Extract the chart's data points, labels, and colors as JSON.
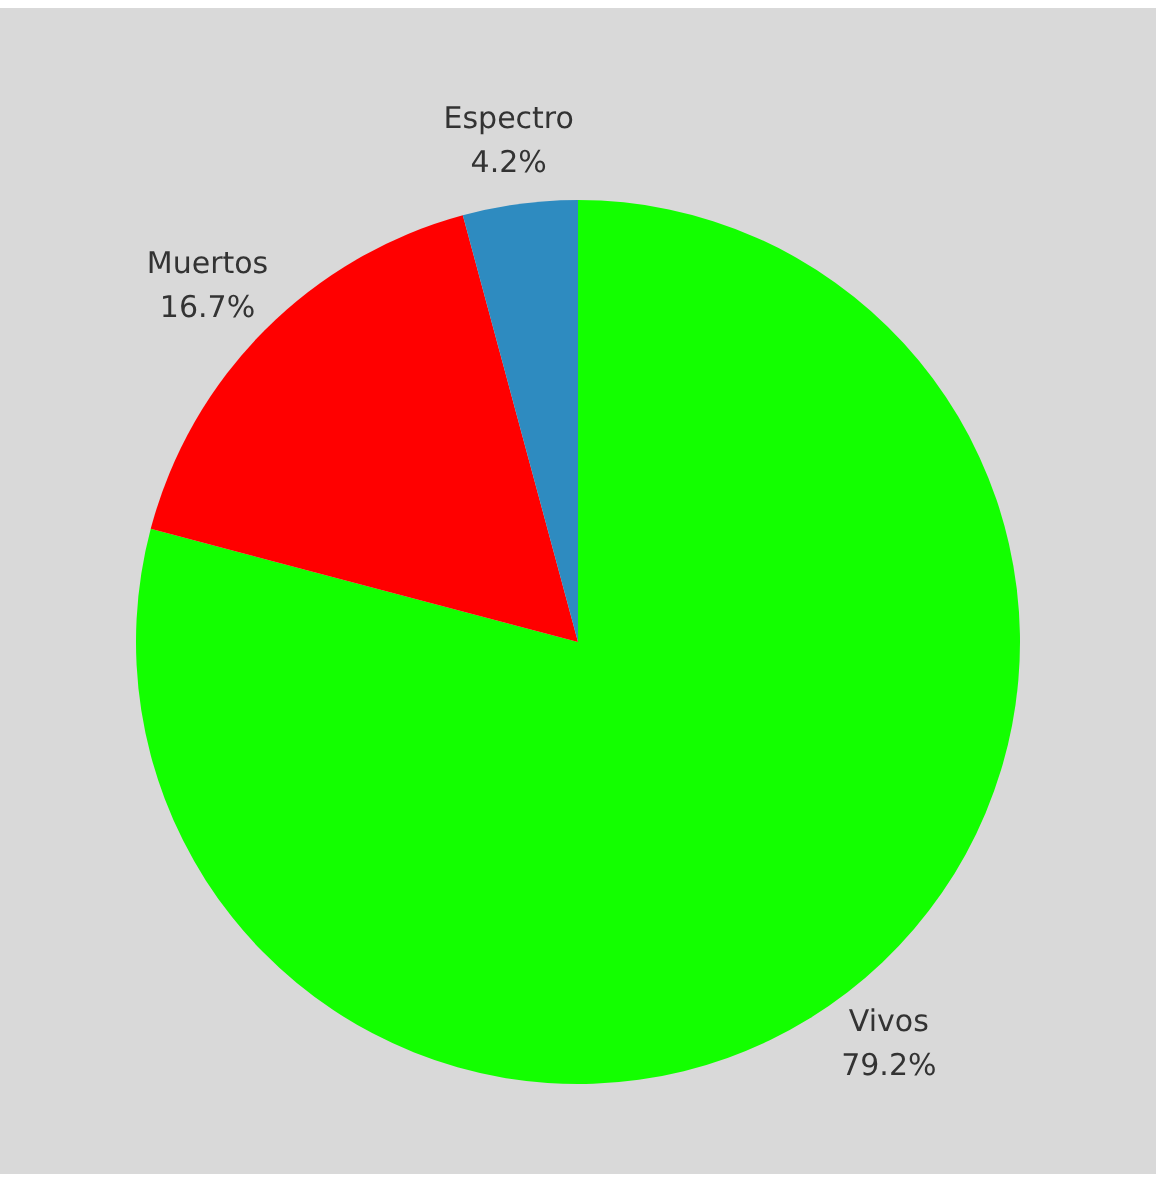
{
  "chart_data": {
    "type": "pie",
    "categories": [
      "Vivos",
      "Muertos",
      "Espectro"
    ],
    "values": [
      79.2,
      16.7,
      4.2
    ],
    "colors": [
      "#13ff00",
      "#ff0000",
      "#2e8bc0"
    ],
    "value_labels": [
      "79.2%",
      "16.7%",
      "4.2%"
    ]
  }
}
